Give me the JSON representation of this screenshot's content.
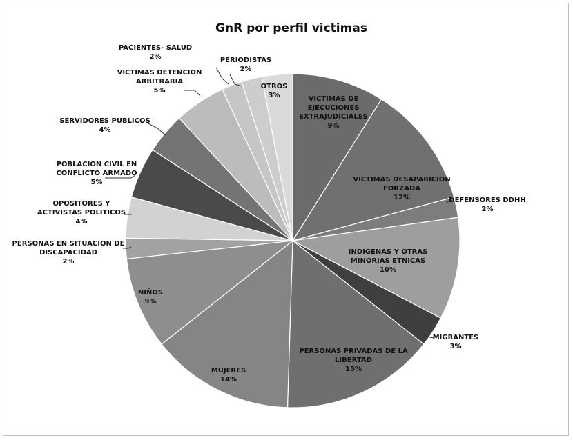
{
  "chart_data": {
    "type": "pie",
    "title": "GnR por perfil victimas",
    "slices": [
      {
        "label_lines": [
          "VICTIMAS DE",
          "EJECUCIONES",
          "EXTRAJUDICIALES"
        ],
        "pct_label": "9%",
        "value": 9,
        "color": "#6b6b6b"
      },
      {
        "label_lines": [
          "VICTIMAS DESAPARICION",
          "FORZADA"
        ],
        "pct_label": "12%",
        "value": 12,
        "color": "#707070"
      },
      {
        "label_lines": [
          "DEFENSORES DDHH"
        ],
        "pct_label": "2%",
        "value": 2,
        "color": "#7d7d7d"
      },
      {
        "label_lines": [
          "INDIGENAS Y OTRAS",
          "MINORIAS ETNICAS"
        ],
        "pct_label": "10%",
        "value": 10,
        "color": "#9e9e9e"
      },
      {
        "label_lines": [
          "MIGRANTES"
        ],
        "pct_label": "3%",
        "value": 3,
        "color": "#3f3f3f"
      },
      {
        "label_lines": [
          "PERSONAS PRIVADAS DE LA",
          "LIBERTAD"
        ],
        "pct_label": "15%",
        "value": 15,
        "color": "#6f6f6f"
      },
      {
        "label_lines": [
          "MUJERES"
        ],
        "pct_label": "14%",
        "value": 14,
        "color": "#858585"
      },
      {
        "label_lines": [
          "NIÑOS"
        ],
        "pct_label": "9%",
        "value": 9,
        "color": "#8e8e8e"
      },
      {
        "label_lines": [
          "PERSONAS EN SITUACION DE",
          "DISCAPACIDAD"
        ],
        "pct_label": "2%",
        "value": 2,
        "color": "#a2a2a2"
      },
      {
        "label_lines": [
          "OPOSITORES Y",
          "ACTIVISTAS POLITICOS"
        ],
        "pct_label": "4%",
        "value": 4,
        "color": "#d2d2d2"
      },
      {
        "label_lines": [
          "POBLACION CIVIL EN",
          "CONFLICTO ARMADO"
        ],
        "pct_label": "5%",
        "value": 5,
        "color": "#4a4a4a"
      },
      {
        "label_lines": [
          "SERVIDORES PUBLICOS"
        ],
        "pct_label": "4%",
        "value": 4,
        "color": "#747474"
      },
      {
        "label_lines": [
          "VICTIMAS DETENCION",
          "ARBITRARIA"
        ],
        "pct_label": "5%",
        "value": 5,
        "color": "#bcbcbc"
      },
      {
        "label_lines": [
          "PACIENTES- SALUD"
        ],
        "pct_label": "2%",
        "value": 2,
        "color": "#c6c6c6"
      },
      {
        "label_lines": [
          "PERIODISTAS"
        ],
        "pct_label": "2%",
        "value": 2,
        "color": "#cdcdcd"
      },
      {
        "label_lines": [
          "OTROS"
        ],
        "pct_label": "3%",
        "value": 3,
        "color": "#dadada"
      }
    ]
  }
}
